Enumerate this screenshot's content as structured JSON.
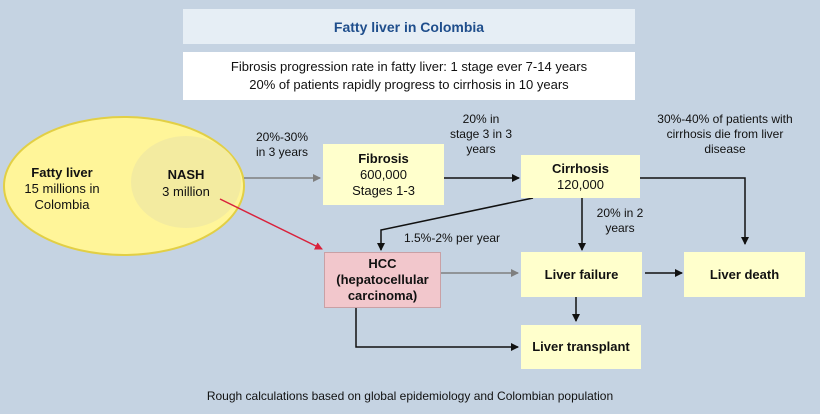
{
  "title": "Fatty liver in Colombia",
  "info": {
    "line1": "Fibrosis progression rate in fatty liver: 1 stage ever 7-14 years",
    "line2": "20% of patients rapidly progress to cirrhosis in 10 years"
  },
  "nodes": {
    "fatty_liver": {
      "name": "Fatty liver",
      "l1": "15 millions in",
      "l2": "Colombia"
    },
    "nash": {
      "name": "NASH",
      "l1": "3 million"
    },
    "fibrosis": {
      "name": "Fibrosis",
      "l1": "600,000",
      "l2": "Stages 1-3"
    },
    "cirrhosis": {
      "name": "Cirrhosis",
      "l1": "120,000"
    },
    "hcc": {
      "l1": "HCC",
      "l2": "(hepatocellular",
      "l3": "carcinoma)"
    },
    "liver_failure": {
      "name": "Liver failure"
    },
    "liver_death": {
      "name": "Liver death"
    },
    "liver_transplant": {
      "name": "Liver transplant"
    }
  },
  "labels": {
    "nash_to_fibrosis": {
      "l1": "20%-30%",
      "l2": "in 3 years"
    },
    "fibrosis_to_cirrhosis": {
      "l1": "20% in",
      "l2": "stage 3 in 3",
      "l3": "years"
    },
    "cirrhosis_death": {
      "l1": "30%-40% of patients with",
      "l2": "cirrhosis die from liver",
      "l3": "disease"
    },
    "cirrhosis_to_failure": {
      "l1": "20% in 2",
      "l2": "years"
    },
    "cirrhosis_to_hcc": "1.5%-2% per year"
  },
  "footer": "Rough calculations based on global epidemiology and Colombian population",
  "colors": {
    "background": "#c5d3e2",
    "node": "#ffffcc",
    "hcc": "#f2c7cc",
    "fatty_liver": "#fff599",
    "nash": "#f3eba0",
    "title": "#1f4e8c",
    "red_arrow": "#d9213b",
    "gray_arrow": "#7f7f7f"
  }
}
